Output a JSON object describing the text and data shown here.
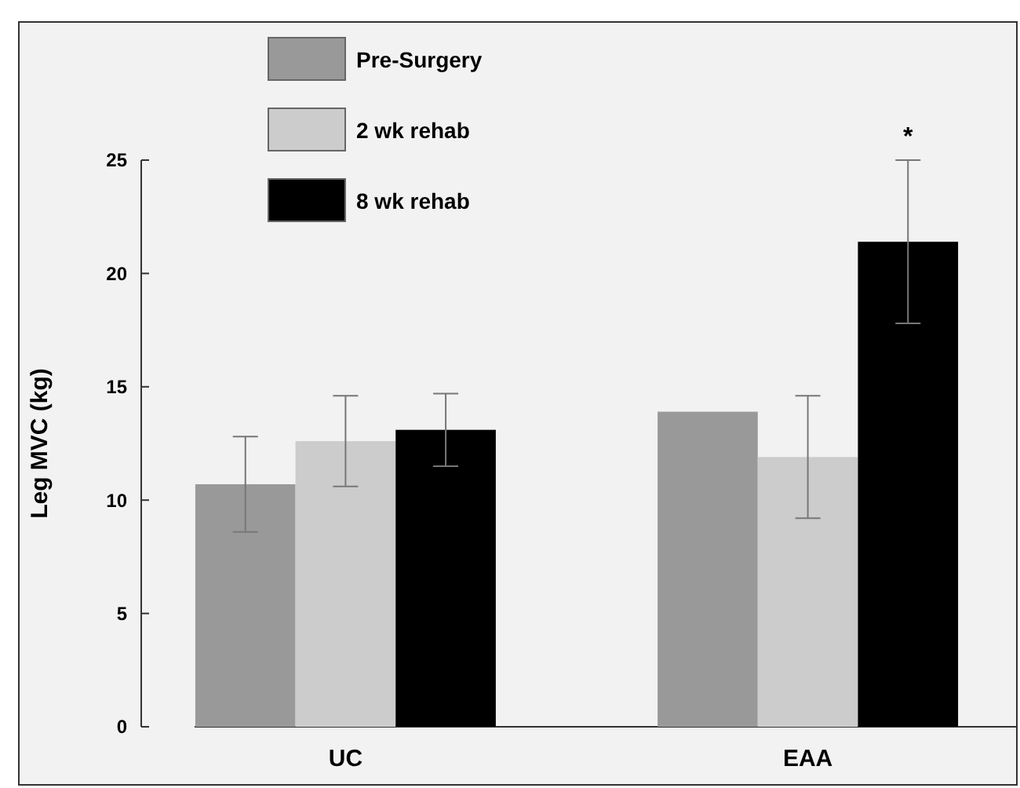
{
  "chart_data": {
    "type": "bar",
    "ylabel": "Leg MVC (kg)",
    "categories": [
      "UC",
      "EAA"
    ],
    "series": [
      {
        "name": "Pre-Surgery",
        "color": "#999999",
        "values": [
          10.7,
          13.9
        ],
        "errors": [
          2.1,
          null
        ]
      },
      {
        "name": "2 wk rehab",
        "color": "#cccccc",
        "values": [
          12.6,
          11.9
        ],
        "errors": [
          2.0,
          2.7
        ]
      },
      {
        "name": "8 wk rehab",
        "color": "#000000",
        "values": [
          13.1,
          21.4
        ],
        "errors": [
          1.6,
          3.6
        ]
      }
    ],
    "ylim": [
      0,
      25
    ],
    "yticks": [
      0,
      5,
      10,
      15,
      20,
      25
    ],
    "grid": false,
    "legend": "top left",
    "annotations": [
      "*"
    ]
  }
}
